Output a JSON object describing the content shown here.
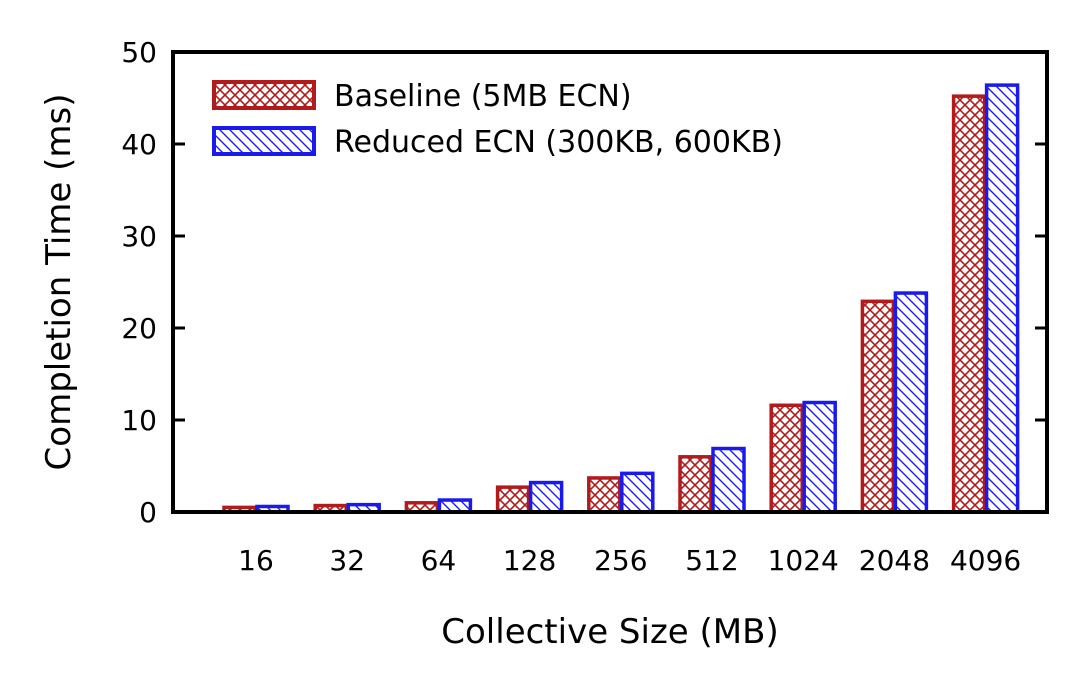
{
  "chart_data": {
    "type": "bar",
    "xlabel": "Collective Size (MB)",
    "ylabel": "Completion Time (ms)",
    "ylim": [
      0,
      50
    ],
    "yticks": [
      0,
      10,
      20,
      30,
      40,
      50
    ],
    "grid": false,
    "legend_position": "top-left",
    "categories": [
      "16",
      "32",
      "64",
      "128",
      "256",
      "512",
      "1024",
      "2048",
      "4096"
    ],
    "series": [
      {
        "name": "Baseline (5MB ECN)",
        "color": "#b31b1b",
        "pattern": "crosshatch",
        "values": [
          0.5,
          0.7,
          1.0,
          2.7,
          3.7,
          6.0,
          11.6,
          22.9,
          45.2
        ]
      },
      {
        "name": "Reduced ECN (300KB, 600KB)",
        "color": "#1a1aee",
        "pattern": "diagonal",
        "values": [
          0.6,
          0.8,
          1.3,
          3.2,
          4.2,
          6.9,
          11.9,
          23.8,
          46.4
        ]
      }
    ]
  }
}
